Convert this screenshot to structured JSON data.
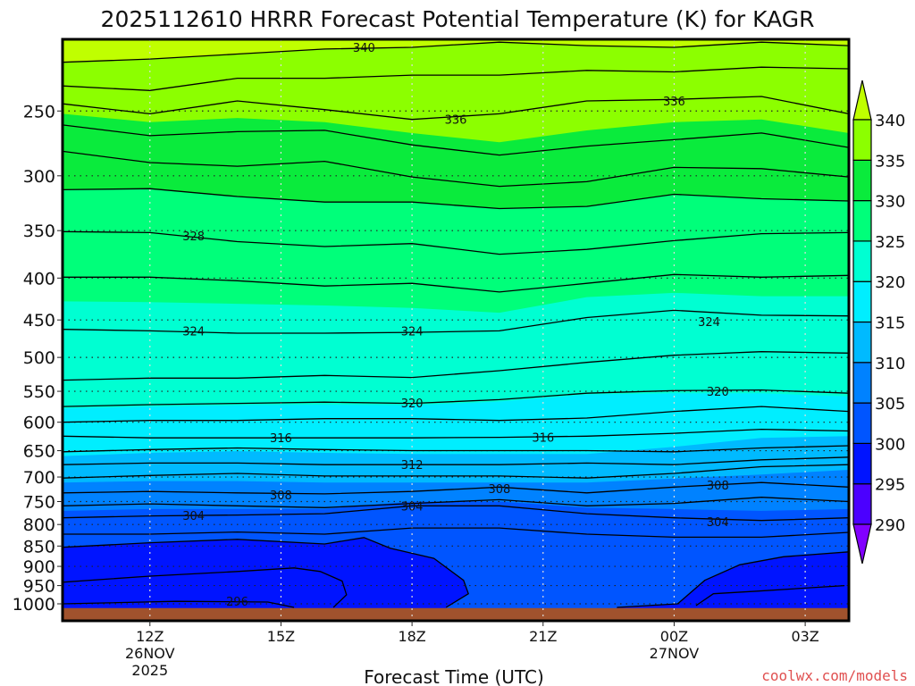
{
  "chart_data": {
    "type": "heatmap",
    "subtype": "time-height filled contour",
    "title": "2025112610 HRRR Forecast Potential Temperature (K) for KAGR",
    "xlabel": "Forecast Time (UTC)",
    "ylabel": "",
    "credit": "coolwx.com/models",
    "x_range_hours": [
      10,
      28
    ],
    "y_range_hpa": [
      204,
      1049
    ],
    "y_scale": "log-pressure (inverted)",
    "surface_pressure_hpa": 1012,
    "y_ticks": [
      250,
      300,
      350,
      400,
      450,
      500,
      550,
      600,
      650,
      700,
      750,
      800,
      850,
      900,
      950,
      1000
    ],
    "x_ticks": [
      {
        "hour": 12,
        "lines": [
          "12Z",
          "26NOV",
          "2025"
        ]
      },
      {
        "hour": 15,
        "lines": [
          "15Z"
        ]
      },
      {
        "hour": 18,
        "lines": [
          "18Z"
        ]
      },
      {
        "hour": 21,
        "lines": [
          "21Z"
        ]
      },
      {
        "hour": 24,
        "lines": [
          "00Z",
          "27NOV"
        ]
      },
      {
        "hour": 27,
        "lines": [
          "03Z"
        ]
      }
    ],
    "colorbar": {
      "levels": [
        290,
        295,
        300,
        305,
        310,
        315,
        320,
        325,
        330,
        335,
        340
      ],
      "labels": [
        "290",
        "295",
        "300",
        "305",
        "310",
        "315",
        "320",
        "325",
        "330",
        "335",
        "340"
      ],
      "colors": [
        "#8200ff",
        "#4b00ff",
        "#0014ff",
        "#0055ff",
        "#0082ff",
        "#00baff",
        "#00eeff",
        "#00ffd2",
        "#00ff7a",
        "#0aeb3c",
        "#8cff00",
        "#c0ff00"
      ]
    },
    "ground_color": "#a0522d",
    "hours": [
      10,
      12,
      14,
      16,
      18,
      20,
      22,
      24,
      26,
      28
    ],
    "fill_boundaries": [
      {
        "level": 340,
        "p": [
          218,
          216,
          213,
          210,
          209,
          206,
          208,
          209,
          206,
          208
        ]
      },
      {
        "level": 335,
        "p": [
          252,
          258,
          255,
          258,
          266,
          273,
          264,
          258,
          256,
          266
        ]
      },
      {
        "level": 330,
        "p": [
          312,
          311,
          318,
          323,
          323,
          329,
          327,
          316,
          320,
          322
        ]
      },
      {
        "level": 325,
        "p": [
          427,
          428,
          430,
          432,
          435,
          441,
          422,
          417,
          421,
          421
        ]
      },
      {
        "level": 320,
        "p": [
          577,
          574,
          572,
          571,
          572,
          566,
          555,
          553,
          553,
          558
        ]
      },
      {
        "level": 315,
        "p": [
          660,
          654,
          651,
          654,
          656,
          656,
          656,
          643,
          627,
          624
        ]
      },
      {
        "level": 310,
        "p": [
          711,
          708,
          708,
          711,
          711,
          711,
          711,
          703,
          695,
          686
        ]
      },
      {
        "level": 305,
        "p": [
          770,
          766,
          766,
          766,
          750,
          750,
          763,
          766,
          770,
          766
        ]
      },
      {
        "level": 300,
        "points": [
          [
            10,
            853
          ],
          [
            12,
            842
          ],
          [
            14,
            834
          ],
          [
            16,
            845
          ],
          [
            16.9,
            830
          ],
          [
            17.5,
            855
          ],
          [
            18.5,
            880
          ],
          [
            19.18,
            936
          ],
          [
            19.29,
            972
          ],
          [
            18.78,
            1010
          ]
        ]
      },
      {
        "level": 300,
        "points": [
          [
            22.69,
            1010
          ],
          [
            24.08,
            1000
          ],
          [
            24.7,
            936
          ],
          [
            25.5,
            896
          ],
          [
            26.5,
            876
          ],
          [
            28,
            864
          ]
        ]
      }
    ],
    "contours": [
      {
        "level": 340,
        "p": [
          218,
          216,
          213,
          210,
          209,
          206,
          208,
          209,
          206,
          208
        ]
      },
      {
        "level": 338,
        "p": [
          233,
          236,
          228,
          228,
          226,
          226,
          223,
          224,
          221,
          222
        ]
      },
      {
        "level": 336,
        "p": [
          245,
          252,
          243,
          249,
          256,
          252,
          243,
          242,
          240,
          252
        ]
      },
      {
        "level": 334,
        "p": [
          260,
          268,
          265,
          264,
          275,
          283,
          276,
          271,
          266,
          277
        ]
      },
      {
        "level": 332,
        "p": [
          280,
          289,
          292,
          288,
          301,
          309,
          305,
          293,
          294,
          301
        ]
      },
      {
        "level": 330,
        "p": [
          312,
          311,
          318,
          323,
          323,
          329,
          327,
          316,
          320,
          322
        ]
      },
      {
        "level": 328,
        "p": [
          351,
          352,
          361,
          366,
          363,
          374,
          369,
          360,
          353,
          352
        ]
      },
      {
        "level": 326,
        "p": [
          399,
          399,
          403,
          409,
          406,
          416,
          406,
          396,
          399,
          397
        ]
      },
      {
        "level": 324,
        "p": [
          462,
          464,
          467,
          467,
          466,
          464,
          447,
          438,
          444,
          445
        ]
      },
      {
        "level": 322,
        "p": [
          533,
          530,
          530,
          526,
          529,
          519,
          507,
          497,
          492,
          494
        ]
      },
      {
        "level": 320,
        "p": [
          574,
          571,
          569,
          567,
          569,
          563,
          553,
          549,
          548,
          553
        ]
      },
      {
        "level": 318,
        "p": [
          600,
          597,
          597,
          594,
          594,
          597,
          593,
          582,
          574,
          582
        ]
      },
      {
        "level": 316,
        "p": [
          624,
          627,
          627,
          627,
          627,
          626,
          624,
          619,
          612,
          615
        ]
      },
      {
        "level": 314,
        "p": [
          652,
          648,
          645,
          648,
          650,
          650,
          650,
          652,
          645,
          641
        ]
      },
      {
        "level": 312,
        "p": [
          676,
          673,
          673,
          676,
          676,
          676,
          673,
          676,
          667,
          662
        ]
      },
      {
        "level": 310,
        "p": [
          702,
          697,
          693,
          698,
          698,
          698,
          702,
          693,
          680,
          676
        ]
      },
      {
        "level": 308,
        "p": [
          732,
          729,
          732,
          734,
          729,
          720,
          732,
          720,
          711,
          720
        ]
      },
      {
        "level": 306,
        "p": [
          759,
          755,
          759,
          763,
          754,
          746,
          759,
          754,
          741,
          750
        ]
      },
      {
        "level": 304,
        "p": [
          785,
          781,
          779,
          776,
          759,
          759,
          776,
          785,
          791,
          785
        ]
      },
      {
        "level": 302,
        "p": [
          822,
          822,
          817,
          822,
          808,
          808,
          822,
          829,
          829,
          818
        ]
      },
      {
        "level": 300,
        "points": [
          [
            10,
            853
          ],
          [
            12,
            842
          ],
          [
            14,
            834
          ],
          [
            16,
            845
          ],
          [
            16.9,
            830
          ],
          [
            17.5,
            855
          ],
          [
            18.5,
            880
          ],
          [
            19.18,
            936
          ],
          [
            19.29,
            972
          ],
          [
            18.78,
            1010
          ]
        ]
      },
      {
        "level": 300,
        "points": [
          [
            22.69,
            1010
          ],
          [
            24.08,
            1000
          ],
          [
            24.7,
            936
          ],
          [
            25.5,
            896
          ],
          [
            26.5,
            876
          ],
          [
            28,
            864
          ]
        ]
      },
      {
        "level": 298,
        "points": [
          [
            10,
            941
          ],
          [
            12,
            925
          ],
          [
            14,
            913
          ],
          [
            15.3,
            904
          ],
          [
            15.9,
            913
          ],
          [
            16.4,
            938
          ],
          [
            16.5,
            975
          ],
          [
            16.2,
            1010
          ]
        ]
      },
      {
        "level": 298,
        "points": [
          [
            24.5,
            1005
          ],
          [
            24.9,
            972
          ],
          [
            25.9,
            965
          ],
          [
            27.9,
            950
          ]
        ]
      },
      {
        "level": 296,
        "points": [
          [
            10,
            1000
          ],
          [
            12.6,
            993
          ],
          [
            14.7,
            995
          ],
          [
            15.3,
            1010
          ]
        ]
      }
    ],
    "contour_labels": [
      {
        "text": "340",
        "hour": 16.9,
        "p": 209
      },
      {
        "text": "336",
        "hour": 19.0,
        "p": 256
      },
      {
        "text": "336",
        "hour": 24.0,
        "p": 243
      },
      {
        "text": "328",
        "hour": 13.0,
        "p": 355
      },
      {
        "text": "324",
        "hour": 13.0,
        "p": 464
      },
      {
        "text": "324",
        "hour": 18.0,
        "p": 464
      },
      {
        "text": "324",
        "hour": 24.8,
        "p": 452
      },
      {
        "text": "320",
        "hour": 18.0,
        "p": 568
      },
      {
        "text": "320",
        "hour": 25.0,
        "p": 550
      },
      {
        "text": "316",
        "hour": 15.0,
        "p": 627
      },
      {
        "text": "316",
        "hour": 21.0,
        "p": 626
      },
      {
        "text": "312",
        "hour": 18.0,
        "p": 676
      },
      {
        "text": "308",
        "hour": 15.0,
        "p": 736
      },
      {
        "text": "308",
        "hour": 20.0,
        "p": 723
      },
      {
        "text": "308",
        "hour": 25.0,
        "p": 716
      },
      {
        "text": "304",
        "hour": 13.0,
        "p": 780
      },
      {
        "text": "304",
        "hour": 18.0,
        "p": 759
      },
      {
        "text": "304",
        "hour": 25.0,
        "p": 794
      },
      {
        "text": "296",
        "hour": 14.0,
        "p": 993
      }
    ]
  }
}
